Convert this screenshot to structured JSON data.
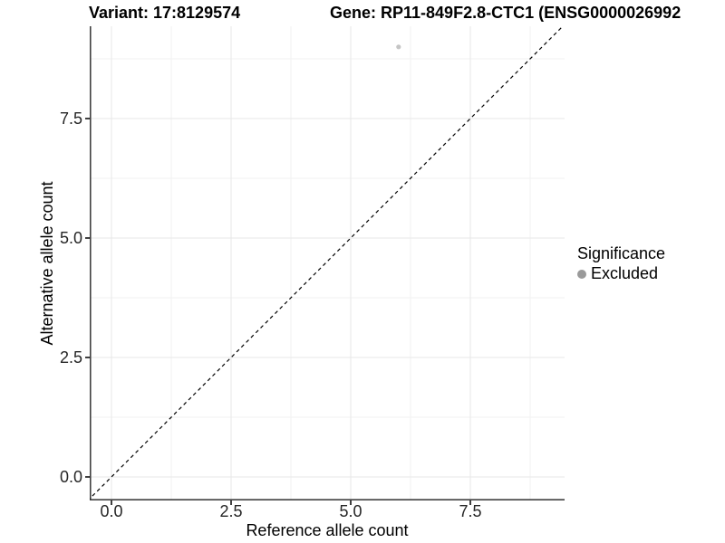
{
  "titles": {
    "variant": "Variant: 17:8129574",
    "gene": "Gene: RP11-849F2.8-CTC1 (ENSG0000026992"
  },
  "chart_data": {
    "type": "scatter",
    "xlabel": "Reference allele count",
    "ylabel": "Alternative allele count",
    "x_ticks": [
      "0.0",
      "2.5",
      "5.0",
      "7.5"
    ],
    "y_ticks": [
      "0.0",
      "2.5",
      "5.0",
      "7.5"
    ],
    "xlim": [
      -0.47,
      9.47
    ],
    "ylim": [
      -0.47,
      9.43
    ],
    "grid": {
      "major": "#e7e7e7",
      "minor": "#f2f2f2",
      "minor_step_offset": 1.25
    },
    "reference_line": {
      "equation": "y = x",
      "style": "dashed",
      "color": "#000000"
    },
    "series": [
      {
        "name": "Excluded",
        "point_color": "#c5c5c5",
        "point_radius": 2.6,
        "points": [
          {
            "x": 6,
            "y": 9
          }
        ]
      }
    ],
    "legend": {
      "title": "Significance",
      "position": "right",
      "entries": [
        {
          "label": "Excluded",
          "color": "#9a9a9a"
        }
      ]
    },
    "axis_line_color": "#404040"
  }
}
